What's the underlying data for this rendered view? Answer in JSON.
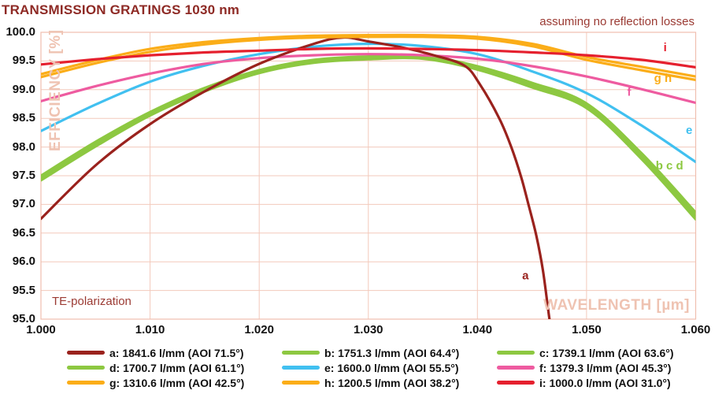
{
  "title": "TRANSMISSION GRATINGS 1030 nm",
  "subtitle": "assuming no reflection losses",
  "polarization_note": "TE-polarization",
  "colors": {
    "grid": "#F3C9BB",
    "plot_border": "#F0BFAF",
    "axis_title": "#EFC3B2",
    "heading_text": "#8E2A25",
    "annotation_text": "#9B3A33",
    "tick_text": "#111111"
  },
  "chart_data": {
    "type": "line",
    "title": "TRANSMISSION GRATINGS 1030 nm",
    "xlabel": "WAVELENGTH [µm]",
    "ylabel": "EFFICIENCY [%]",
    "xlim": [
      1.0,
      1.06
    ],
    "ylim": [
      95.0,
      100.0
    ],
    "grid": true,
    "x_ticks": [
      1.0,
      1.01,
      1.02,
      1.03,
      1.04,
      1.05,
      1.06
    ],
    "x_tick_labels": [
      "1.000",
      "1.010",
      "1.020",
      "1.030",
      "1.040",
      "1.050",
      "1.060"
    ],
    "y_ticks": [
      95.0,
      95.5,
      96.0,
      96.5,
      97.0,
      97.5,
      98.0,
      98.5,
      99.0,
      99.5,
      100.0
    ],
    "y_tick_labels": [
      "95.0",
      "95.5",
      "96.0",
      "96.5",
      "97.0",
      "97.5",
      "98.0",
      "98.5",
      "99.0",
      "99.5",
      "100.0"
    ],
    "x": [
      1.0,
      1.005,
      1.01,
      1.015,
      1.02,
      1.025,
      1.03,
      1.035,
      1.04,
      1.045,
      1.05,
      1.055,
      1.06
    ],
    "draw_order": [
      "c",
      "d",
      "b",
      "e",
      "f",
      "a",
      "g",
      "h",
      "i"
    ],
    "series": [
      {
        "key": "a",
        "label": "a: 1841.6 l/mm (AOI 71.5°)",
        "color": "#9A221D",
        "points": [
          [
            1.0,
            96.75
          ],
          [
            1.005,
            97.68
          ],
          [
            1.01,
            98.4
          ],
          [
            1.015,
            98.97
          ],
          [
            1.02,
            99.45
          ],
          [
            1.025,
            99.8
          ],
          [
            1.0277,
            99.91
          ],
          [
            1.03,
            99.84
          ],
          [
            1.033,
            99.74
          ],
          [
            1.036,
            99.6
          ],
          [
            1.0388,
            99.42
          ],
          [
            1.0402,
            99.1
          ],
          [
            1.042,
            98.5
          ],
          [
            1.0431,
            98.0
          ],
          [
            1.044,
            97.48
          ],
          [
            1.0447,
            96.98
          ],
          [
            1.0454,
            96.45
          ],
          [
            1.046,
            95.85
          ],
          [
            1.0466,
            95.0
          ],
          [
            1.0473,
            94.1
          ]
        ]
      },
      {
        "key": "b",
        "label": "b: 1751.3 l/mm (AOI 64.4°)",
        "color": "#8DC841",
        "values": [
          97.46,
          98.05,
          98.58,
          99.0,
          99.32,
          99.5,
          99.56,
          99.57,
          99.38,
          99.08,
          98.72,
          97.85,
          96.8
        ]
      },
      {
        "key": "c",
        "label": "c: 1739.1 l/mm (AOI 63.6°)",
        "color": "#8DC841",
        "values": [
          97.42,
          98.01,
          98.55,
          98.97,
          99.29,
          99.47,
          99.53,
          99.54,
          99.35,
          99.04,
          98.68,
          97.8,
          96.74
        ]
      },
      {
        "key": "d",
        "label": "d: 1700.7 l/mm (AOI 61.1°)",
        "color": "#8DC841",
        "values": [
          97.5,
          98.09,
          98.61,
          99.03,
          99.34,
          99.52,
          99.58,
          99.59,
          99.41,
          99.12,
          98.76,
          97.9,
          96.86
        ]
      },
      {
        "key": "e",
        "label": "e: 1600.0 l/mm (AOI 55.5°)",
        "color": "#41C0F0",
        "values": [
          98.28,
          98.74,
          99.14,
          99.42,
          99.62,
          99.75,
          99.8,
          99.76,
          99.62,
          99.32,
          98.94,
          98.38,
          97.74
        ]
      },
      {
        "key": "f",
        "label": "f: 1379.3 l/mm (AOI 45.3°)",
        "color": "#EE5BA0",
        "values": [
          98.8,
          99.06,
          99.28,
          99.45,
          99.55,
          99.6,
          99.62,
          99.6,
          99.54,
          99.41,
          99.23,
          99.01,
          98.77
        ]
      },
      {
        "key": "g",
        "label": "g: 1310.6 l/mm (AOI 42.5°)",
        "color": "#FBAD18",
        "values": [
          99.22,
          99.46,
          99.66,
          99.79,
          99.87,
          99.91,
          99.92,
          99.92,
          99.89,
          99.76,
          99.52,
          99.34,
          99.17
        ]
      },
      {
        "key": "h",
        "label": "h: 1200.5 l/mm (AOI 38.2°)",
        "color": "#FBAD18",
        "values": [
          99.27,
          99.51,
          99.71,
          99.83,
          99.9,
          99.94,
          99.95,
          99.95,
          99.92,
          99.8,
          99.57,
          99.4,
          99.23
        ]
      },
      {
        "key": "i",
        "label": "i: 1000.0 l/mm (AOI 31.0°)",
        "color": "#E5202E",
        "values": [
          99.44,
          99.53,
          99.6,
          99.65,
          99.68,
          99.71,
          99.72,
          99.71,
          99.69,
          99.65,
          99.6,
          99.52,
          99.39
        ]
      }
    ],
    "annotations": [
      {
        "text": "a",
        "x": 1.0444,
        "y": 95.76,
        "color": "#9A221D"
      },
      {
        "text": "b c d",
        "x": 1.0576,
        "y": 97.68,
        "color": "#8DC841"
      },
      {
        "text": "e",
        "x": 1.0594,
        "y": 98.3,
        "color": "#41C0F0"
      },
      {
        "text": "f",
        "x": 1.0539,
        "y": 98.96,
        "color": "#EE5BA0"
      },
      {
        "text": "g h",
        "x": 1.057,
        "y": 99.2,
        "color": "#FBAD18"
      },
      {
        "text": "i",
        "x": 1.0572,
        "y": 99.74,
        "color": "#E5202E"
      }
    ],
    "legend_position": "bottom",
    "legend_columns": 3
  }
}
